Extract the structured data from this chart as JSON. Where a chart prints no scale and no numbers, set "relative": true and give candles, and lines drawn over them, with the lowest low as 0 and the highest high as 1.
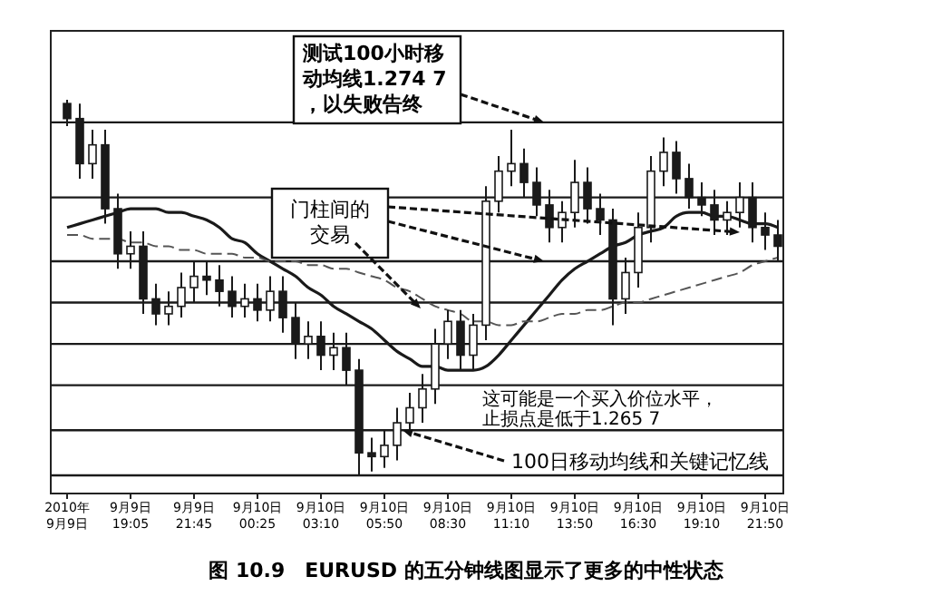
{
  "chart_data": {
    "type": "candlestick",
    "title": "图 10.9　EURUSD 的五分钟线图显示了更多的中性状态",
    "relative": true,
    "color": "#1a1a1a",
    "categories": [
      "2010年\n9月9日",
      null,
      null,
      null,
      null,
      "9月9日\n19:05",
      null,
      null,
      null,
      null,
      "9月9日\n21:45",
      null,
      null,
      null,
      null,
      "9月10日\n00:25",
      null,
      null,
      null,
      null,
      "9月10日\n03:10",
      null,
      null,
      null,
      null,
      "9月10日\n05:50",
      null,
      null,
      null,
      null,
      "9月10日\n08:30",
      null,
      null,
      null,
      null,
      "9月10日\n11:10",
      null,
      null,
      null,
      null,
      "9月10日\n13:50",
      null,
      null,
      null,
      null,
      "9月10日\n16:30",
      null,
      null,
      null,
      null,
      "9月10日\n19:10",
      null,
      null,
      null,
      null,
      "9月10日\n21:50",
      null
    ],
    "ohlc": [
      [
        0.99,
        1.0,
        0.93,
        0.95
      ],
      [
        0.95,
        0.99,
        0.79,
        0.83
      ],
      [
        0.83,
        0.92,
        0.79,
        0.88
      ],
      [
        0.88,
        0.92,
        0.67,
        0.71
      ],
      [
        0.71,
        0.75,
        0.55,
        0.59
      ],
      [
        0.59,
        0.65,
        0.55,
        0.61
      ],
      [
        0.61,
        0.65,
        0.43,
        0.47
      ],
      [
        0.47,
        0.51,
        0.4,
        0.43
      ],
      [
        0.43,
        0.49,
        0.4,
        0.45
      ],
      [
        0.45,
        0.54,
        0.42,
        0.5
      ],
      [
        0.5,
        0.57,
        0.46,
        0.53
      ],
      [
        0.53,
        0.57,
        0.48,
        0.52
      ],
      [
        0.52,
        0.56,
        0.45,
        0.49
      ],
      [
        0.49,
        0.53,
        0.42,
        0.45
      ],
      [
        0.45,
        0.51,
        0.42,
        0.47
      ],
      [
        0.47,
        0.51,
        0.41,
        0.44
      ],
      [
        0.44,
        0.53,
        0.41,
        0.49
      ],
      [
        0.49,
        0.53,
        0.38,
        0.42
      ],
      [
        0.42,
        0.46,
        0.31,
        0.35
      ],
      [
        0.35,
        0.41,
        0.31,
        0.37
      ],
      [
        0.37,
        0.41,
        0.28,
        0.32
      ],
      [
        0.32,
        0.38,
        0.28,
        0.34
      ],
      [
        0.34,
        0.38,
        0.24,
        0.28
      ],
      [
        0.28,
        0.31,
        0.0,
        0.06
      ],
      [
        0.06,
        0.1,
        0.01,
        0.05
      ],
      [
        0.05,
        0.12,
        0.02,
        0.08
      ],
      [
        0.08,
        0.18,
        0.04,
        0.14
      ],
      [
        0.14,
        0.22,
        0.11,
        0.18
      ],
      [
        0.18,
        0.27,
        0.14,
        0.23
      ],
      [
        0.23,
        0.39,
        0.19,
        0.35
      ],
      [
        0.35,
        0.44,
        0.31,
        0.41
      ],
      [
        0.41,
        0.44,
        0.28,
        0.32
      ],
      [
        0.32,
        0.43,
        0.28,
        0.4
      ],
      [
        0.4,
        0.77,
        0.36,
        0.73
      ],
      [
        0.73,
        0.85,
        0.7,
        0.81
      ],
      [
        0.81,
        0.92,
        0.77,
        0.83
      ],
      [
        0.83,
        0.87,
        0.74,
        0.78
      ],
      [
        0.78,
        0.82,
        0.69,
        0.72
      ],
      [
        0.72,
        0.76,
        0.62,
        0.66
      ],
      [
        0.66,
        0.73,
        0.62,
        0.7
      ],
      [
        0.7,
        0.84,
        0.66,
        0.78
      ],
      [
        0.78,
        0.82,
        0.67,
        0.71
      ],
      [
        0.71,
        0.75,
        0.64,
        0.68
      ],
      [
        0.68,
        0.71,
        0.4,
        0.47
      ],
      [
        0.47,
        0.58,
        0.43,
        0.54
      ],
      [
        0.54,
        0.7,
        0.5,
        0.66
      ],
      [
        0.66,
        0.85,
        0.62,
        0.81
      ],
      [
        0.81,
        0.9,
        0.77,
        0.86
      ],
      [
        0.86,
        0.89,
        0.75,
        0.79
      ],
      [
        0.79,
        0.83,
        0.71,
        0.74
      ],
      [
        0.74,
        0.78,
        0.69,
        0.72
      ],
      [
        0.72,
        0.76,
        0.64,
        0.68
      ],
      [
        0.68,
        0.73,
        0.64,
        0.7
      ],
      [
        0.7,
        0.78,
        0.66,
        0.74
      ],
      [
        0.74,
        0.78,
        0.62,
        0.66
      ],
      [
        0.66,
        0.7,
        0.6,
        0.64
      ],
      [
        0.64,
        0.68,
        0.57,
        0.61
      ]
    ],
    "series": [
      {
        "type": "line",
        "color": "#1a1a1a",
        "line_style": "solid",
        "values": [
          0.66,
          0.67,
          0.68,
          0.69,
          0.7,
          0.71,
          0.71,
          0.71,
          0.7,
          0.7,
          0.69,
          0.68,
          0.66,
          0.63,
          0.62,
          0.59,
          0.57,
          0.55,
          0.53,
          0.5,
          0.48,
          0.45,
          0.43,
          0.41,
          0.39,
          0.36,
          0.33,
          0.31,
          0.29,
          0.29,
          0.28,
          0.28,
          0.28,
          0.29,
          0.32,
          0.36,
          0.4,
          0.44,
          0.48,
          0.52,
          0.55,
          0.57,
          0.59,
          0.61,
          0.62,
          0.64,
          0.65,
          0.66,
          0.69,
          0.7,
          0.7,
          0.69,
          0.69,
          0.68,
          0.67,
          0.67,
          0.66
        ]
      },
      {
        "type": "line",
        "color": "#555555",
        "line_style": "dashed",
        "values": [
          0.64,
          0.64,
          0.63,
          0.63,
          0.63,
          0.62,
          0.62,
          0.61,
          0.61,
          0.6,
          0.6,
          0.59,
          0.59,
          0.59,
          0.58,
          0.58,
          0.57,
          0.57,
          0.57,
          0.56,
          0.56,
          0.55,
          0.55,
          0.54,
          0.53,
          0.52,
          0.5,
          0.49,
          0.47,
          0.45,
          0.44,
          0.43,
          0.41,
          0.41,
          0.4,
          0.4,
          0.41,
          0.41,
          0.42,
          0.43,
          0.43,
          0.44,
          0.44,
          0.45,
          0.46,
          0.46,
          0.47,
          0.48,
          0.49,
          0.5,
          0.51,
          0.52,
          0.53,
          0.54,
          0.56,
          0.57,
          0.58
        ]
      }
    ],
    "ref_lines": [
      {
        "axis": "y",
        "value": 0.94,
        "color": "#1a1a1a"
      },
      {
        "axis": "y",
        "value": 0.74,
        "color": "#1a1a1a"
      },
      {
        "axis": "y",
        "value": 0.57,
        "color": "#1a1a1a"
      },
      {
        "axis": "y",
        "value": 0.46,
        "color": "#1a1a1a"
      },
      {
        "axis": "y",
        "value": 0.35,
        "color": "#1a1a1a"
      },
      {
        "axis": "y",
        "value": 0.24,
        "color": "#1a1a1a"
      },
      {
        "axis": "y",
        "value": 0.12,
        "color": "#1a1a1a"
      },
      {
        "axis": "y",
        "value": 0,
        "color": "#1a1a1a"
      }
    ],
    "annotations": [
      {
        "text": "测试100小时移动均线1.274 7，以失败告终",
        "y": 0.94
      },
      {
        "text": "门柱间的交易",
        "y": 0.57
      },
      "这可能是一个买入价位水平，止损点是低于1.265 7",
      {
        "text": "100日移动均线和关键记忆线",
        "y": 0.12
      }
    ]
  }
}
